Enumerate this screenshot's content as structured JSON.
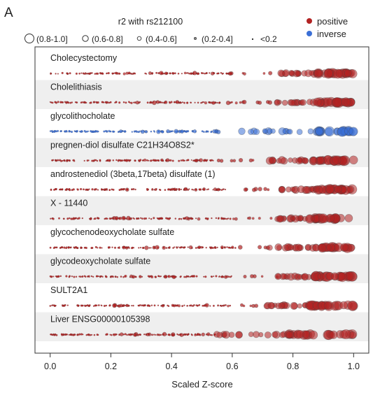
{
  "panel_label": "A",
  "size_legend": {
    "title": "r2 with rs212100",
    "entries": [
      "(0.8-1.0]",
      "(0.6-0.8]",
      "(0.4-0.6]",
      "(0.2-0.4]",
      "<0.2"
    ]
  },
  "color_legend": {
    "entries": [
      {
        "label": "positive",
        "color": "#b22222"
      },
      {
        "label": "inverse",
        "color": "#3b6fd6"
      }
    ]
  },
  "chart_data": {
    "type": "scatter",
    "xlabel": "Scaled Z-score",
    "xlim": [
      -0.05,
      1.05
    ],
    "xticks": [
      "0.0",
      "0.2",
      "0.4",
      "0.6",
      "0.8",
      "1.0"
    ],
    "xtick_values": [
      0.0,
      0.2,
      0.4,
      0.6,
      0.8,
      1.0
    ],
    "rows": [
      {
        "name": "Cholecystectomy",
        "direction": "positive",
        "density_start": 0.0,
        "mid_end": 0.6,
        "cluster_start": 0.76,
        "dense_start": 0.88
      },
      {
        "name": "Cholelithiasis",
        "direction": "positive",
        "density_start": 0.0,
        "mid_end": 0.6,
        "cluster_start": 0.74,
        "dense_start": 0.88
      },
      {
        "name": "glycolithocholate",
        "direction": "inverse",
        "density_start": 0.0,
        "mid_end": 0.55,
        "cluster_start": 0.63,
        "dense_start": 0.87
      },
      {
        "name": "pregnen-diol disulfate C21H34O8S2*",
        "direction": "positive",
        "density_start": 0.0,
        "mid_end": 0.55,
        "cluster_start": 0.72,
        "dense_start": 0.86
      },
      {
        "name": "androstenediol (3beta,17beta) disulfate (1)",
        "direction": "positive",
        "density_start": 0.0,
        "mid_end": 0.58,
        "cluster_start": 0.75,
        "dense_start": 0.88
      },
      {
        "name": "X - 11440",
        "direction": "positive",
        "density_start": 0.0,
        "mid_end": 0.6,
        "cluster_start": 0.73,
        "dense_start": 0.85
      },
      {
        "name": "glycochenodeoxycholate sulfate",
        "direction": "positive",
        "density_start": 0.0,
        "mid_end": 0.62,
        "cluster_start": 0.72,
        "dense_start": 0.87
      },
      {
        "name": "glycodeoxycholate sulfate",
        "direction": "positive",
        "density_start": 0.0,
        "mid_end": 0.6,
        "cluster_start": 0.75,
        "dense_start": 0.87
      },
      {
        "name": "SULT2A1",
        "direction": "positive",
        "density_start": 0.0,
        "mid_end": 0.6,
        "cluster_start": 0.71,
        "dense_start": 0.85
      },
      {
        "name": "Liver ENSG00000105398",
        "direction": "positive",
        "density_start": 0.0,
        "mid_end": 0.55,
        "cluster_start": 0.54,
        "dense_start": 0.78
      }
    ],
    "grid": false,
    "legend_placement": "top"
  }
}
